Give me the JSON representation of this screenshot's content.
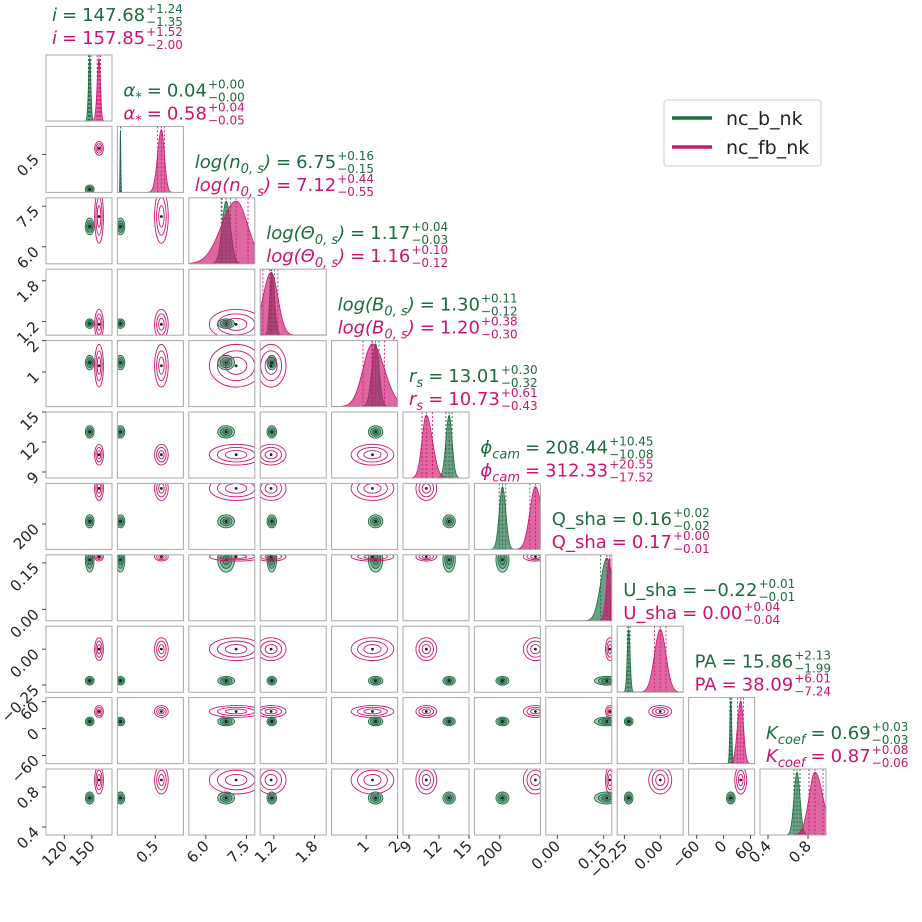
{
  "chart_data": {
    "type": "corner",
    "equals": "=",
    "series": [
      {
        "name": "nc_b_nk",
        "color": "#1d6b42"
      },
      {
        "name": "nc_fb_nk",
        "color": "#cc1570"
      }
    ],
    "parameters": [
      {
        "label": [
          {
            "text": "i",
            "italic": true
          }
        ],
        "lim": [
          100,
          172
        ],
        "ticks": [
          120,
          150
        ],
        "estimates": [
          {
            "median": 147.68,
            "upper": 1.24,
            "lower": -1.35,
            "value_labels": {
              "median": "147.68",
              "upper": "+1.24",
              "lower": "−1.35"
            }
          },
          {
            "median": 157.85,
            "upper": 1.52,
            "lower": -2.0,
            "value_labels": {
              "median": "157.85",
              "upper": "+1.52",
              "lower": "−2.00"
            }
          }
        ]
      },
      {
        "label": [
          {
            "text": "α",
            "italic": true
          },
          {
            "text": "*",
            "sub": true
          }
        ],
        "lim": [
          0,
          0.87
        ],
        "ticks": [
          0.5
        ],
        "estimates": [
          {
            "median": 0.04,
            "upper": 0,
            "lower": -0.0,
            "value_labels": {
              "median": "0.04",
              "upper": "+0.00",
              "lower": "−0.00"
            }
          },
          {
            "median": 0.58,
            "upper": 0.04,
            "lower": -0.05,
            "value_labels": {
              "median": "0.58",
              "upper": "+0.04",
              "lower": "−0.05"
            }
          }
        ]
      },
      {
        "label": [
          {
            "text": "log(n",
            "italic": true
          },
          {
            "text": "0, s",
            "sub": true,
            "italic": true
          },
          {
            "text": ")",
            "italic": true
          }
        ],
        "lim": [
          5.37,
          7.81
        ],
        "ticks": [
          {
            "value": 6,
            "label": "6.0"
          },
          7.5
        ],
        "estimates": [
          {
            "median": 6.75,
            "upper": 0.16,
            "lower": -0.15,
            "value_labels": {
              "median": "6.75",
              "upper": "+0.16",
              "lower": "−0.15"
            }
          },
          {
            "median": 7.12,
            "upper": 0.44,
            "lower": -0.55,
            "value_labels": {
              "median": "7.12",
              "upper": "+0.44",
              "lower": "−0.55"
            }
          }
        ]
      },
      {
        "label": [
          {
            "text": "log(Θ",
            "italic": true
          },
          {
            "text": "0, s",
            "sub": true,
            "italic": true
          },
          {
            "text": ")",
            "italic": true
          }
        ],
        "lim": [
          1.0,
          1.97
        ],
        "ticks": [
          1.2,
          1.8
        ],
        "estimates": [
          {
            "median": 1.17,
            "upper": 0.04,
            "lower": -0.03,
            "value_labels": {
              "median": "1.17",
              "upper": "+0.04",
              "lower": "−0.03"
            }
          },
          {
            "median": 1.16,
            "upper": 0.1,
            "lower": -0.12,
            "value_labels": {
              "median": "1.16",
              "upper": "+0.10",
              "lower": "−0.12"
            }
          }
        ]
      },
      {
        "label": [
          {
            "text": "log(B",
            "italic": true
          },
          {
            "text": "0, s",
            "sub": true,
            "italic": true
          },
          {
            "text": ")",
            "italic": true
          }
        ],
        "lim": [
          -0.1,
          2.0
        ],
        "ticks": [
          1,
          2
        ],
        "estimates": [
          {
            "median": 1.3,
            "upper": 0.11,
            "lower": -0.12,
            "value_labels": {
              "median": "1.30",
              "upper": "+0.11",
              "lower": "−0.12"
            }
          },
          {
            "median": 1.2,
            "upper": 0.38,
            "lower": -0.3,
            "value_labels": {
              "median": "1.20",
              "upper": "+0.38",
              "lower": "−0.30"
            }
          }
        ]
      },
      {
        "label": [
          {
            "text": "r",
            "italic": true
          },
          {
            "text": "s",
            "sub": true,
            "italic": true
          }
        ],
        "lim": [
          8.4,
          15
        ],
        "ticks": [
          9,
          12,
          15
        ],
        "estimates": [
          {
            "median": 13.01,
            "upper": 0.3,
            "lower": -0.32,
            "value_labels": {
              "median": "13.01",
              "upper": "+0.30",
              "lower": "−0.32"
            }
          },
          {
            "median": 10.73,
            "upper": 0.61,
            "lower": -0.43,
            "value_labels": {
              "median": "10.73",
              "upper": "+0.61",
              "lower": "−0.43"
            }
          }
        ]
      },
      {
        "label": [
          {
            "text": "ϕ",
            "italic": true
          },
          {
            "text": "cam",
            "sub": true,
            "italic": true
          }
        ],
        "lim": [
          120,
          328
        ],
        "ticks": [
          200
        ],
        "estimates": [
          {
            "median": 208.44,
            "upper": 10.45,
            "lower": -10.08,
            "value_labels": {
              "median": "208.44",
              "upper": "+10.45",
              "lower": "−10.08"
            }
          },
          {
            "median": 312.33,
            "upper": 20.55,
            "lower": -17.52,
            "value_labels": {
              "median": "312.33",
              "upper": "+20.55",
              "lower": "−17.52"
            }
          }
        ]
      },
      {
        "label": [
          {
            "text": "Q_sha"
          }
        ],
        "lim": [
          -0.037,
          0.176
        ],
        "ticks": [
          {
            "value": 0,
            "label": "0.00"
          },
          0.15
        ],
        "estimates": [
          {
            "median": 0.16,
            "upper": 0.02,
            "lower": -0.02,
            "value_labels": {
              "median": "0.16",
              "upper": "+0.02",
              "lower": "−0.02"
            }
          },
          {
            "median": 0.17,
            "upper": 0,
            "lower": -0.01,
            "value_labels": {
              "median": "0.17",
              "upper": "+0.00",
              "lower": "−0.01"
            }
          }
        ]
      },
      {
        "label": [
          {
            "text": "U_sha"
          }
        ],
        "lim": [
          -0.3,
          0.16
        ],
        "ticks": [
          {
            "value": -0.25,
            "label": "−0.25"
          },
          {
            "value": 0,
            "label": "0.00"
          }
        ],
        "estimates": [
          {
            "median": -0.22,
            "upper": 0.01,
            "lower": -0.01,
            "value_labels": {
              "median": "−0.22",
              "upper": "+0.01",
              "lower": "−0.01"
            }
          },
          {
            "median": 0,
            "upper": 0.04,
            "lower": -0.04,
            "value_labels": {
              "median": "0.00",
              "upper": "+0.04",
              "lower": "−0.04"
            }
          }
        ]
      },
      {
        "label": [
          {
            "text": "PA"
          }
        ],
        "lim": [
          -78,
          69
        ],
        "ticks": [
          {
            "value": -60,
            "label": "−60"
          },
          0,
          60
        ],
        "estimates": [
          {
            "median": 15.86,
            "upper": 2.13,
            "lower": -1.99,
            "value_labels": {
              "median": "15.86",
              "upper": "+2.13",
              "lower": "−1.99"
            }
          },
          {
            "median": 38.09,
            "upper": 6.01,
            "lower": -7.24,
            "value_labels": {
              "median": "38.09",
              "upper": "+6.01",
              "lower": "−7.24"
            }
          }
        ]
      },
      {
        "label": [
          {
            "text": "K",
            "italic": true
          },
          {
            "text": "coef",
            "sub": true,
            "italic": true
          }
        ],
        "lim": [
          0.32,
          0.98
        ],
        "ticks": [
          0.4,
          0.8
        ],
        "estimates": [
          {
            "median": 0.69,
            "upper": 0.03,
            "lower": -0.03,
            "value_labels": {
              "median": "0.69",
              "upper": "+0.03",
              "lower": "−0.03"
            }
          },
          {
            "median": 0.87,
            "upper": 0.08,
            "lower": -0.06,
            "value_labels": {
              "median": "0.87",
              "upper": "+0.08",
              "lower": "−0.06"
            }
          }
        ]
      }
    ]
  }
}
